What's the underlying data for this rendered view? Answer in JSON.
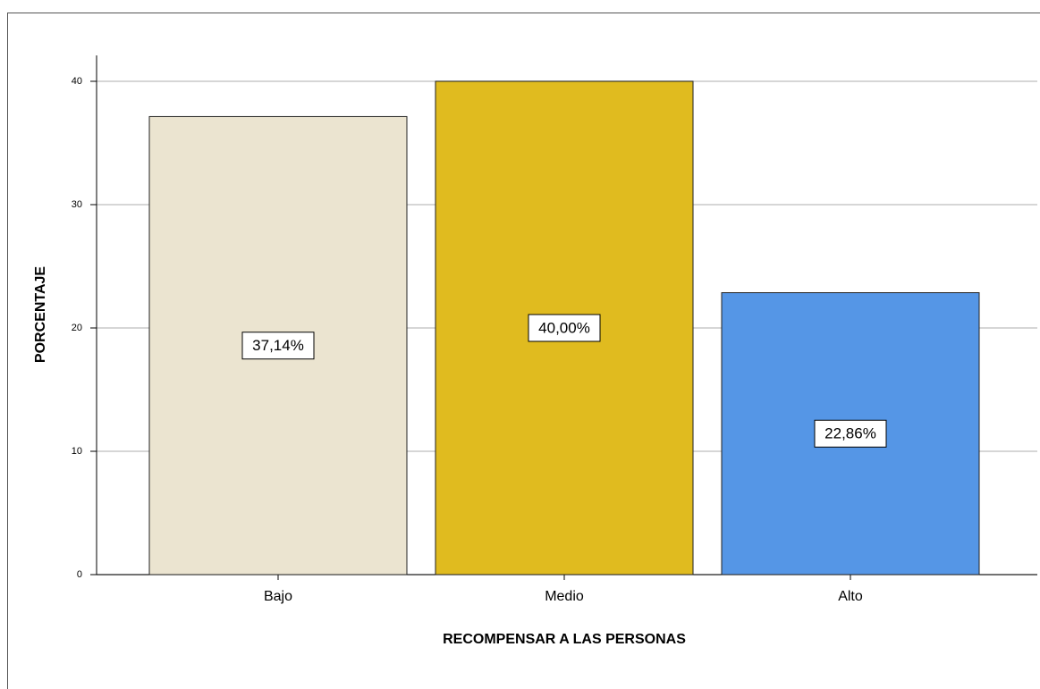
{
  "chart_data": {
    "type": "bar",
    "xlabel": "RECOMPENSAR A LAS PERSONAS",
    "ylabel": "PORCENTAJE",
    "categories": [
      "Bajo",
      "Medio",
      "Alto"
    ],
    "values": [
      37.14,
      40.0,
      22.86
    ],
    "value_labels": [
      "37,14%",
      "40,00%",
      "22,86%"
    ],
    "colors": [
      "#ebe4d0",
      "#e0bb1f",
      "#5596e6"
    ],
    "ylim": [
      0,
      42.1
    ],
    "yticks": [
      0,
      10,
      20,
      30,
      40
    ],
    "grid": true
  }
}
